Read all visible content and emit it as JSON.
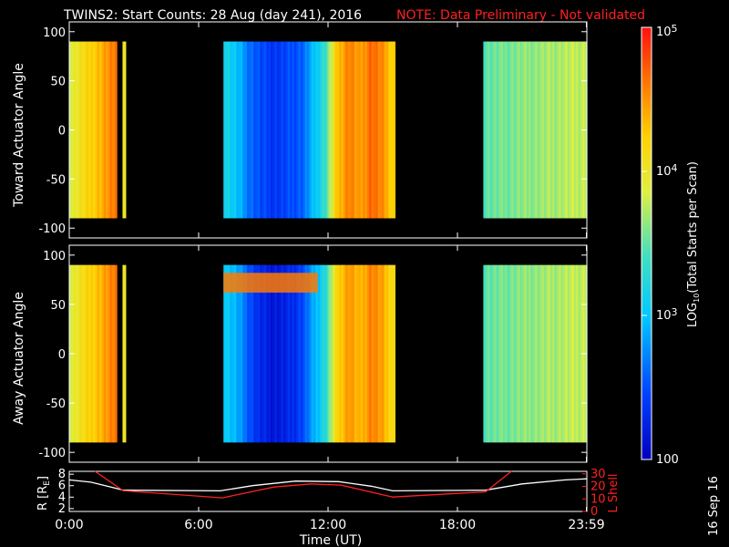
{
  "chart_data": [
    {
      "type": "heatmap",
      "title": "TWINS2: Start Counts: 28 Aug (day 241), 2016",
      "note": "NOTE: Data Preliminary - Not validated",
      "ylabel": "Toward Actuator Angle",
      "ylim": [
        -110,
        110
      ],
      "yticks": [
        "100",
        "50",
        "0",
        "-50",
        "-100"
      ],
      "ytick_values": [
        100,
        50,
        0,
        -50,
        -100
      ],
      "xlim": [
        0,
        24
      ],
      "data_angle_range": [
        -90,
        90
      ],
      "segments": [
        {
          "start": 0.0,
          "end": 2.2,
          "level_start": 3.9,
          "level_end": 4.6,
          "gap_after": 0.45
        },
        {
          "start": 7.15,
          "end": 15.1,
          "profile": [
            3.2,
            3.0,
            2.7,
            2.5,
            2.4,
            2.4,
            2.5,
            2.6,
            3.0,
            3.4,
            4.3,
            4.6,
            4.4,
            4.7,
            4.5,
            4.2
          ]
        },
        {
          "start": 19.2,
          "end": 24.0,
          "level_start": 3.5,
          "level_end": 3.8
        }
      ]
    },
    {
      "type": "heatmap",
      "ylabel": "Away Actuator Angle",
      "ylim": [
        -110,
        110
      ],
      "yticks": [
        "100",
        "50",
        "0",
        "-50",
        "-100"
      ],
      "ytick_values": [
        100,
        50,
        0,
        -50,
        -100
      ],
      "xlim": [
        0,
        24
      ],
      "data_angle_range": [
        -90,
        90
      ],
      "segments": [
        {
          "start": 0.0,
          "end": 2.2,
          "level_start": 3.9,
          "level_end": 4.6,
          "gap_after": 0.45
        },
        {
          "start": 7.15,
          "end": 15.1,
          "profile": [
            3.1,
            2.9,
            2.6,
            2.3,
            2.2,
            2.2,
            2.3,
            2.5,
            2.9,
            3.3,
            4.2,
            4.5,
            4.3,
            4.6,
            4.4,
            4.1
          ],
          "band_top_angle": 70,
          "band_level": 4.6
        },
        {
          "start": 19.2,
          "end": 24.0,
          "level_start": 3.5,
          "level_end": 3.8
        }
      ]
    },
    {
      "type": "line",
      "ylabel_left": "R [R",
      "ylabel_left_sub": "E",
      "ylabel_left_end": "]",
      "ylabel_right": "L Shell",
      "xlabel": "Time (UT)",
      "xticks": [
        "0:00",
        "6:00",
        "12:00",
        "18:00",
        "23:59"
      ],
      "xtick_values": [
        0,
        6,
        12,
        18,
        23.98
      ],
      "left_yticks": [
        "2",
        "4",
        "6",
        "8"
      ],
      "left_ylim": [
        1.5,
        8.5
      ],
      "right_yticks": [
        "0",
        "10",
        "20",
        "30"
      ],
      "right_ylim": [
        0,
        32
      ],
      "series": [
        {
          "color": "#ffffff",
          "axis": "left",
          "x": [
            0,
            1,
            2,
            2.5,
            7.0,
            8.5,
            10.5,
            12.5,
            14.0,
            15.0,
            19.3,
            21,
            23,
            24
          ],
          "y": [
            7.0,
            6.6,
            5.7,
            5.2,
            5.1,
            6.0,
            6.8,
            6.7,
            5.9,
            5.1,
            5.2,
            6.3,
            7.0,
            7.2
          ]
        },
        {
          "color": "#ff2020",
          "axis": "right",
          "x": [
            1.2,
            2.5,
            7.1,
            9.5,
            11.2,
            12.6,
            15.0,
            19.3,
            20.5
          ],
          "y": [
            32,
            16.5,
            10.8,
            19.5,
            22,
            21,
            11.5,
            15.6,
            32
          ]
        }
      ]
    }
  ],
  "colorbar": {
    "label": "LOG",
    "label_sub": "10",
    "label_rest": "(Total Starts per Scan)",
    "ticks": [
      {
        "level": 5,
        "base": "10",
        "exp": "5"
      },
      {
        "level": 4,
        "base": "10",
        "exp": "4"
      },
      {
        "level": 3,
        "base": "10",
        "exp": "3"
      },
      {
        "level": 2,
        "base": "100",
        "exp": ""
      }
    ],
    "range": [
      2,
      5
    ]
  },
  "footer": {
    "date_stamp": "16 Sep 16"
  }
}
